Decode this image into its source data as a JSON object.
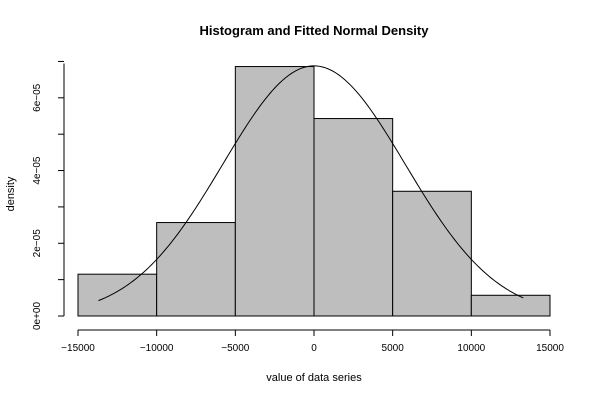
{
  "chart_data": {
    "type": "histogram",
    "title": "Histogram and Fitted Normal Density",
    "xlabel": "value of data series",
    "ylabel": "density",
    "xlim": [
      -15000,
      15000
    ],
    "ylim": [
      0,
      7e-05
    ],
    "x_ticks": [
      -15000,
      -10000,
      -5000,
      0,
      5000,
      10000,
      15000
    ],
    "x_tick_labels": [
      "−15000",
      "−10000",
      "−5000",
      "0",
      "5000",
      "10000",
      "15000"
    ],
    "y_ticks": [
      0,
      2e-05,
      4e-05,
      6e-05
    ],
    "y_tick_labels": [
      "0e+00",
      "2e−05",
      "4e−05",
      "6e−05"
    ],
    "bins": [
      {
        "x0": -15000,
        "x1": -10000,
        "density": 1.15e-05
      },
      {
        "x0": -10000,
        "x1": -5000,
        "density": 2.57e-05
      },
      {
        "x0": -5000,
        "x1": 0,
        "density": 6.86e-05
      },
      {
        "x0": 0,
        "x1": 5000,
        "density": 5.43e-05
      },
      {
        "x0": 5000,
        "x1": 10000,
        "density": 3.43e-05
      },
      {
        "x0": 10000,
        "x1": 15000,
        "density": 5.7e-06
      }
    ],
    "fitted_normal": {
      "mean": 0,
      "sd": 5800,
      "x_range": [
        -13700,
        13300
      ]
    },
    "grid": false
  }
}
